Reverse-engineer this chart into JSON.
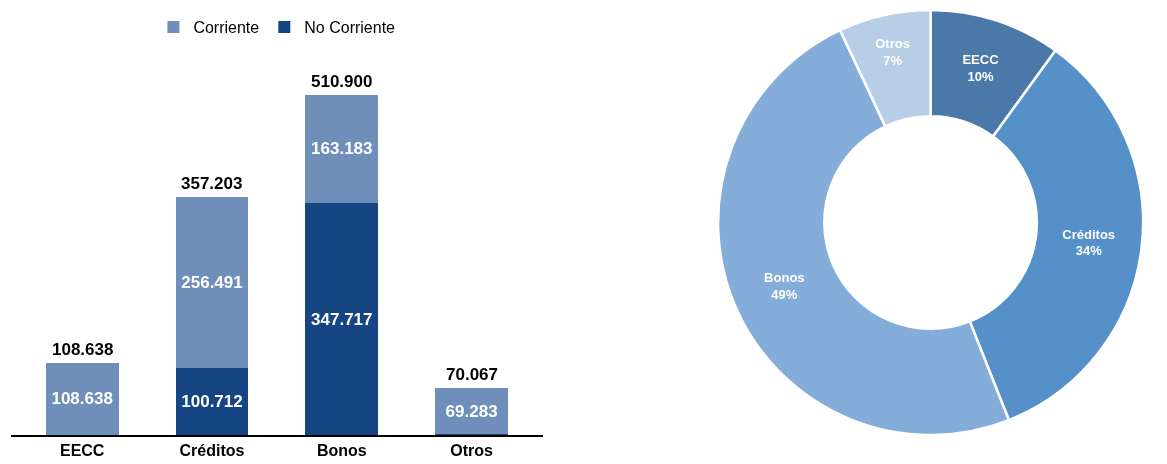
{
  "chart_data": [
    {
      "type": "bar",
      "stacked": true,
      "categories": [
        "EECC",
        "Créditos",
        "Bonos",
        "Otros"
      ],
      "legend": "top",
      "series": [
        {
          "name": "No Corriente",
          "color": "#154683",
          "values": [
            null,
            100712,
            347717,
            784
          ],
          "value_labels": [
            null,
            "100.712",
            "347.717",
            null
          ]
        },
        {
          "name": "Corriente",
          "color": "#6f8fba",
          "values": [
            108638,
            256491,
            163183,
            69283
          ],
          "value_labels": [
            "108.638",
            "256.491",
            "163.183",
            "69.283"
          ]
        }
      ],
      "totals": [
        "108.638",
        "357.203",
        "510.900",
        "70.067"
      ]
    },
    {
      "type": "donut",
      "categories": [
        "EECC",
        "Créditos",
        "Bonos",
        "Otros"
      ],
      "values": [
        10,
        34,
        49,
        7
      ],
      "colors": [
        "#4a78a8",
        "#5590c8",
        "#85add9",
        "#b8cde6"
      ],
      "value_labels": [
        "10%",
        "34%",
        "49%",
        "7%"
      ]
    }
  ]
}
